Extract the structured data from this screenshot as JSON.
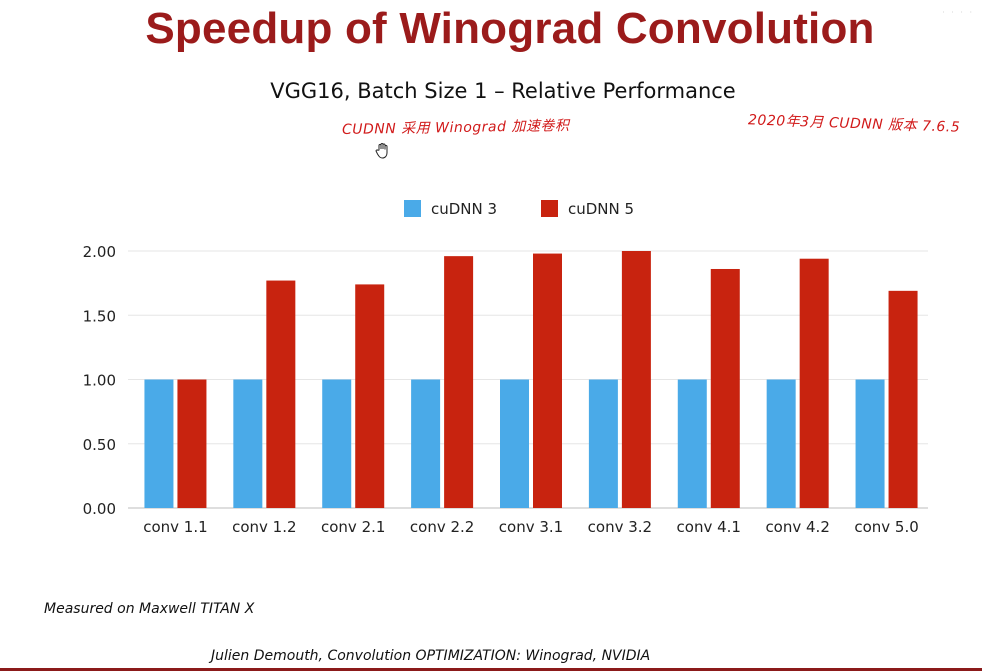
{
  "slide": {
    "title": "Speedup of Winograd Convolution",
    "note_left": "CUDNN 采用 Winograd 加速卷积",
    "note_right": "2020年3月 CUDNN 版本 7.6.5",
    "footer_measured": "Measured on Maxwell TITAN X",
    "footer_credit": "Julien Demouth, Convolution OPTIMIZATION: Winograd, NVIDIA",
    "accent_color": "#9b1b1b",
    "annotation_color": "#d11a1a"
  },
  "chart_data": {
    "type": "bar",
    "title": "VGG16, Batch Size 1 – Relative Performance",
    "categories": [
      "conv 1.1",
      "conv 1.2",
      "conv 2.1",
      "conv 2.2",
      "conv 3.1",
      "conv 3.2",
      "conv 4.1",
      "conv 4.2",
      "conv 5.0"
    ],
    "series": [
      {
        "name": "cuDNN 3",
        "color": "#4aaae8",
        "values": [
          1.0,
          1.0,
          1.0,
          1.0,
          1.0,
          1.0,
          1.0,
          1.0,
          1.0
        ]
      },
      {
        "name": "cuDNN 5",
        "color": "#c8230f",
        "values": [
          1.0,
          1.77,
          1.74,
          1.96,
          1.98,
          2.0,
          1.86,
          1.94,
          1.69
        ]
      }
    ],
    "ylim": [
      0,
      2.0
    ],
    "yticks": [
      "0.00",
      "0.50",
      "1.00",
      "1.50",
      "2.00"
    ],
    "ytick_values": [
      0,
      0.5,
      1.0,
      1.5,
      2.0
    ],
    "grid": true,
    "legend_position": "top-center"
  }
}
